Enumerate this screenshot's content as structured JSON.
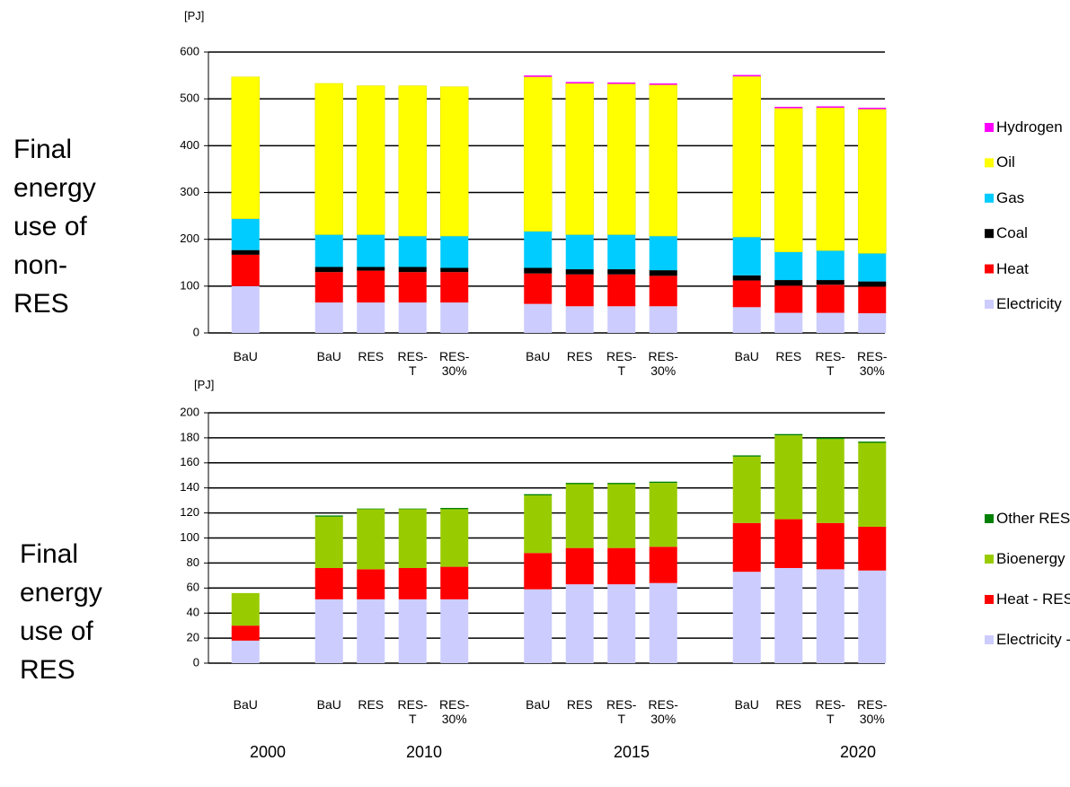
{
  "chart_data": [
    {
      "type": "stacked_bar",
      "side_label": "Final energy use of non-RES",
      "y_label": "[PJ]",
      "categories": [
        "BaU",
        null,
        "BaU",
        "RES",
        "RES-T",
        "RES-30%",
        null,
        "BaU",
        "RES",
        "RES-T",
        "RES-30%",
        null,
        "BaU",
        "RES",
        "RES-T",
        "RES-30%"
      ],
      "series": [
        {
          "name": "Electricity",
          "color": "#ccccff",
          "values": [
            100,
            null,
            65,
            65,
            65,
            65,
            null,
            62,
            57,
            57,
            57,
            null,
            55,
            43,
            43,
            42
          ]
        },
        {
          "name": "Heat",
          "color": "#ff0000",
          "values": [
            67,
            null,
            65,
            68,
            65,
            65,
            null,
            65,
            68,
            68,
            65,
            null,
            57,
            58,
            60,
            57
          ]
        },
        {
          "name": "Coal",
          "color": "#000000",
          "values": [
            10,
            null,
            11,
            8,
            11,
            9,
            null,
            12,
            11,
            11,
            12,
            null,
            11,
            12,
            10,
            11
          ]
        },
        {
          "name": "Gas",
          "color": "#00ccff",
          "values": [
            67,
            null,
            69,
            69,
            66,
            68,
            null,
            78,
            74,
            74,
            73,
            null,
            82,
            60,
            63,
            60
          ]
        },
        {
          "name": "Oil",
          "color": "#ffff00",
          "values": [
            303,
            null,
            323,
            318,
            321,
            319,
            null,
            330,
            323,
            322,
            323,
            null,
            343,
            307,
            305,
            308
          ]
        },
        {
          "name": "Hydrogen",
          "color": "#ff00ff",
          "values": [
            0,
            null,
            0,
            0,
            0,
            0,
            null,
            3,
            3,
            3,
            3,
            null,
            3,
            3,
            3,
            3
          ]
        }
      ],
      "ylim": [
        0,
        600
      ],
      "yticks": [
        0,
        100,
        200,
        300,
        400,
        500,
        600
      ],
      "grid": true
    },
    {
      "type": "stacked_bar",
      "side_label": "Final energy use of RES",
      "y_label": "[PJ]",
      "categories": [
        "BaU",
        null,
        "BaU",
        "RES",
        "RES-T",
        "RES-30%",
        null,
        "BaU",
        "RES",
        "RES-T",
        "RES-30%",
        null,
        "BaU",
        "RES",
        "RES-T",
        "RES-30%"
      ],
      "series": [
        {
          "name": "Electricity -RES",
          "color": "#ccccff",
          "values": [
            18,
            null,
            51,
            51,
            51,
            51,
            null,
            59,
            63,
            63,
            64,
            null,
            73,
            76,
            75,
            74
          ]
        },
        {
          "name": "Heat - RES",
          "color": "#ff0000",
          "values": [
            12,
            null,
            25,
            24,
            25,
            26,
            null,
            29,
            29,
            29,
            29,
            null,
            39,
            39,
            37,
            35
          ]
        },
        {
          "name": "Bioenergy",
          "color": "#99cc00",
          "values": [
            26,
            null,
            41,
            48,
            47,
            46,
            null,
            46,
            51,
            51,
            51,
            null,
            53,
            67,
            67,
            67
          ]
        },
        {
          "name": "Other RES",
          "color": "#008000",
          "values": [
            0,
            null,
            1,
            0.5,
            0.5,
            1,
            null,
            1,
            1,
            1,
            1,
            null,
            1,
            1,
            1,
            1
          ]
        }
      ],
      "ylim": [
        0,
        200
      ],
      "yticks": [
        0,
        20,
        40,
        60,
        80,
        100,
        120,
        140,
        160,
        180,
        200
      ],
      "grid": true
    }
  ],
  "group_labels": [
    "2000",
    "2010",
    "2015",
    "2020"
  ]
}
